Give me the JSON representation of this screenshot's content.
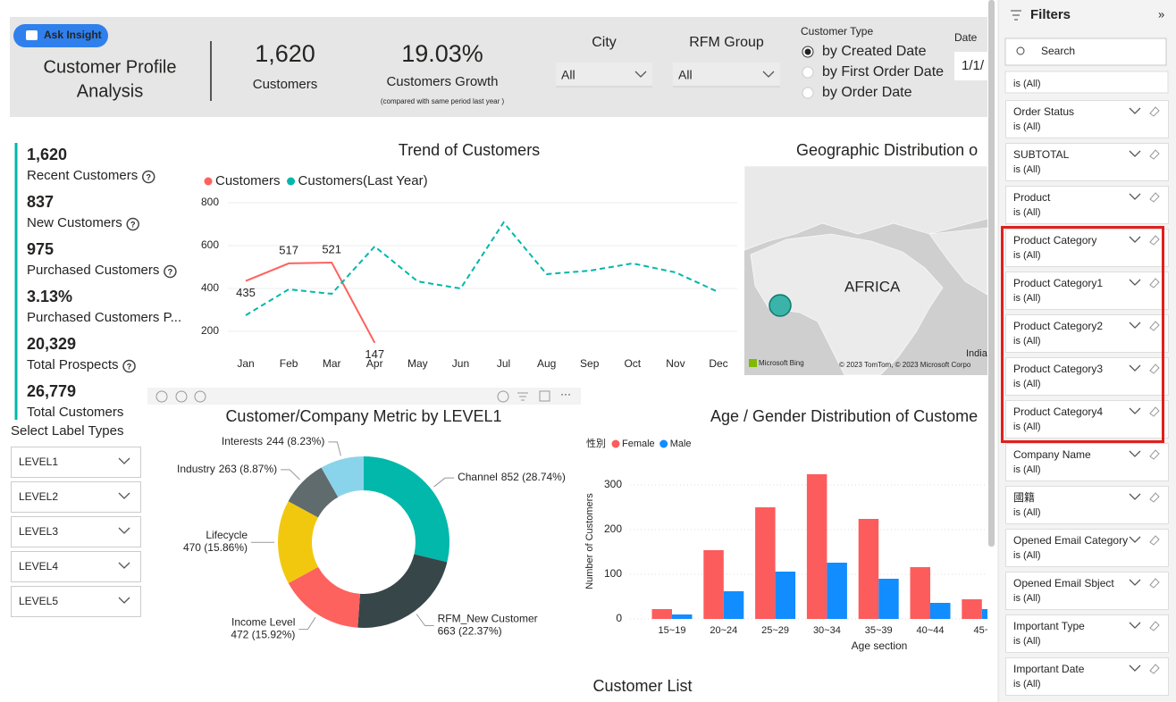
{
  "header": {
    "button": "Ask Insight",
    "title": [
      "Customer Profile",
      "Analysis"
    ],
    "kpis": [
      {
        "value": "1,620",
        "label": "Customers"
      },
      {
        "value": "19.03%",
        "label": "Customers Growth",
        "note": "(compared with same period last year )"
      }
    ],
    "slicers": [
      {
        "label": "City",
        "value": "All"
      },
      {
        "label": "RFM Group",
        "value": "All"
      }
    ],
    "customer_type": {
      "label": "Customer Type",
      "options": [
        "by Created Date",
        "by First Order Date",
        "by Order Date"
      ],
      "selected": 0
    },
    "date": {
      "label": "Date",
      "value": "1/1/"
    }
  },
  "metrics": [
    {
      "value": "1,620",
      "label": "Recent Customers",
      "help": true
    },
    {
      "value": "837",
      "label": "New Customers",
      "help": true
    },
    {
      "value": "975",
      "label": "Purchased Customers",
      "help": true
    },
    {
      "value": "3.13%",
      "label": "Purchased Customers P...",
      "help": false
    },
    {
      "value": "20,329",
      "label": "Total Prospects",
      "help": true
    },
    {
      "value": "26,779",
      "label": "Total Customers",
      "help": false
    }
  ],
  "label_types": {
    "title": "Select Label Types",
    "options": [
      "LEVEL1",
      "LEVEL2",
      "LEVEL3",
      "LEVEL4",
      "LEVEL5"
    ]
  },
  "chart_data": [
    {
      "type": "line",
      "title": "Trend of Customers",
      "categories": [
        "Jan",
        "Feb",
        "Mar",
        "Apr",
        "May",
        "Jun",
        "Jul",
        "Aug",
        "Sep",
        "Oct",
        "Nov",
        "Dec"
      ],
      "series": [
        {
          "name": "Customers",
          "color": "#fd625e",
          "style": "solid",
          "data_labels": true,
          "values": [
            435,
            517,
            521,
            147,
            null,
            null,
            null,
            null,
            null,
            null,
            null,
            null
          ]
        },
        {
          "name": "Customers(Last Year)",
          "color": "#01b8aa",
          "style": "dashed",
          "data_labels": false,
          "values": [
            275,
            396,
            375,
            596,
            433,
            400,
            708,
            467,
            483,
            517,
            475,
            383
          ]
        }
      ],
      "ylim": [
        100,
        850
      ],
      "yticks": [
        200,
        400,
        600,
        800
      ],
      "grid": true,
      "legend": "top-left"
    },
    {
      "type": "donut",
      "title": "Customer/Company Metric by LEVEL1",
      "categories": [
        "Channel",
        "RFM_New Customer",
        "Income Level",
        "Lifecycle",
        "Industry",
        "Interests"
      ],
      "values": [
        852,
        663,
        472,
        470,
        263,
        244
      ],
      "value_labels": [
        "852 (28.74%)",
        "663 (22.37%)",
        "472 (15.92%)",
        "470 (15.86%)",
        "263 (8.87%)",
        "244 (8.23%)"
      ],
      "colors": [
        "#01b8aa",
        "#374649",
        "#fd625e",
        "#f2c80f",
        "#5f6b6d",
        "#8ad4eb"
      ]
    },
    {
      "type": "bar",
      "title": "Age / Gender Distribution of Custome",
      "categories": [
        "15~19",
        "20~24",
        "25~29",
        "30~34",
        "35~39",
        "40~44",
        "45~"
      ],
      "legend_title": "性別",
      "series": [
        {
          "name": "Female",
          "color": "#fd5c5c",
          "values": [
            22,
            154,
            250,
            324,
            224,
            116,
            44
          ]
        },
        {
          "name": "Male",
          "color": "#118dff",
          "values": [
            10,
            62,
            106,
            126,
            90,
            36,
            22
          ]
        }
      ],
      "ylim": [
        0,
        340
      ],
      "yticks": [
        0,
        100,
        200,
        300
      ],
      "grid": true,
      "y_label": "Number of Customers",
      "x_label": "Age section"
    }
  ],
  "map": {
    "title": "Geographic Distribution o",
    "region": "AFRICA",
    "corner": "India",
    "logo": "Microsoft Bing",
    "copyright": "© 2023 TomTom, © 2023 Microsoft Corpo"
  },
  "customer_list": {
    "title": "Customer List"
  },
  "filters": {
    "title": "Filters",
    "search": "Search",
    "partial_state": "is (All)",
    "items": [
      {
        "name": "Order Status",
        "state": "is (All)",
        "highlighted": false
      },
      {
        "name": "SUBTOTAL",
        "state": "is (All)",
        "highlighted": false
      },
      {
        "name": "Product",
        "state": "is (All)",
        "highlighted": false
      },
      {
        "name": "Product Category",
        "state": "is (All)",
        "highlighted": true
      },
      {
        "name": "Product Category1",
        "state": "is (All)",
        "highlighted": true
      },
      {
        "name": "Product Category2",
        "state": "is (All)",
        "highlighted": true
      },
      {
        "name": "Product Category3",
        "state": "is (All)",
        "highlighted": true
      },
      {
        "name": "Product Category4",
        "state": "is (All)",
        "highlighted": true
      },
      {
        "name": "Company Name",
        "state": "is (All)",
        "highlighted": false
      },
      {
        "name": "國籍",
        "state": "is (All)",
        "highlighted": false
      },
      {
        "name": "Opened Email Category",
        "state": "is (All)",
        "highlighted": false
      },
      {
        "name": "Opened Email Sbject",
        "state": "is (All)",
        "highlighted": false
      },
      {
        "name": "Important Type",
        "state": "is (All)",
        "highlighted": false
      },
      {
        "name": "Important Date",
        "state": "is (All)",
        "highlighted": false
      }
    ]
  }
}
